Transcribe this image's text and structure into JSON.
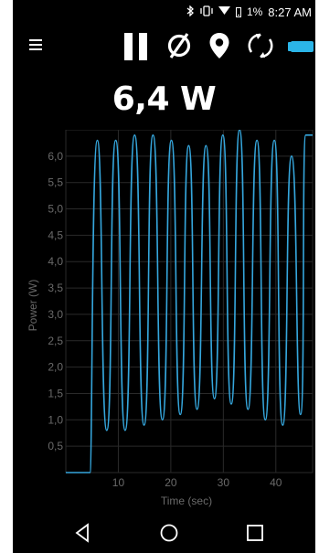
{
  "status_bar": {
    "battery_percent": "1%",
    "time": "8:27 AM",
    "icons": [
      "bluetooth-icon",
      "vibrate-icon",
      "wifi-icon",
      "battery-charging-icon"
    ]
  },
  "toolbar": {
    "icons": [
      "menu-icon",
      "pause-icon",
      "reset-icon",
      "location-pin-icon",
      "sync-icon",
      "battery-icon"
    ]
  },
  "power_readout": "6,4 W",
  "colors": {
    "line": "#35a6dc",
    "battery": "#2bb5e8",
    "grid": "#2a2a2a",
    "axis_text": "#6a6a6a",
    "background": "#000000"
  },
  "chart_data": {
    "type": "line",
    "xlabel": "Time (sec)",
    "ylabel": "Power (W)",
    "xlim": [
      0,
      47
    ],
    "ylim": [
      0,
      6.5
    ],
    "x_ticks": [
      10,
      20,
      30,
      40
    ],
    "x_tick_labels": [
      "10",
      "20",
      "30",
      "40"
    ],
    "y_ticks": [
      0.5,
      1.0,
      1.5,
      2.0,
      2.5,
      3.0,
      3.5,
      4.0,
      4.5,
      5.0,
      5.5,
      6.0
    ],
    "y_tick_labels": [
      "0,5",
      "1,0",
      "1,5",
      "2,0",
      "2,5",
      "3,0",
      "3,5",
      "4,0",
      "4,5",
      "5,0",
      "5,5",
      "6,0"
    ],
    "grid": true,
    "series": [
      {
        "points": [
          [
            0,
            0.0
          ],
          [
            4.6,
            0.0
          ],
          [
            6.0,
            6.3
          ],
          [
            7.8,
            0.8
          ],
          [
            9.5,
            6.3
          ],
          [
            11.3,
            0.8
          ],
          [
            13.1,
            6.4
          ],
          [
            14.9,
            0.9
          ],
          [
            16.6,
            6.4
          ],
          [
            18.4,
            1.0
          ],
          [
            20.1,
            6.3
          ],
          [
            21.8,
            1.1
          ],
          [
            23.4,
            6.2
          ],
          [
            25.0,
            1.2
          ],
          [
            26.7,
            6.2
          ],
          [
            28.3,
            1.4
          ],
          [
            29.9,
            6.4
          ],
          [
            31.5,
            1.3
          ],
          [
            33.1,
            6.5
          ],
          [
            34.7,
            1.2
          ],
          [
            36.4,
            6.3
          ],
          [
            38.0,
            1.0
          ],
          [
            39.7,
            6.3
          ],
          [
            41.3,
            0.9
          ],
          [
            43.0,
            6.0
          ],
          [
            44.7,
            1.1
          ],
          [
            45.7,
            6.4
          ],
          [
            47.0,
            6.4
          ]
        ]
      }
    ]
  },
  "nav_bar": {
    "icons": [
      "back-icon",
      "home-icon",
      "recents-icon"
    ]
  }
}
